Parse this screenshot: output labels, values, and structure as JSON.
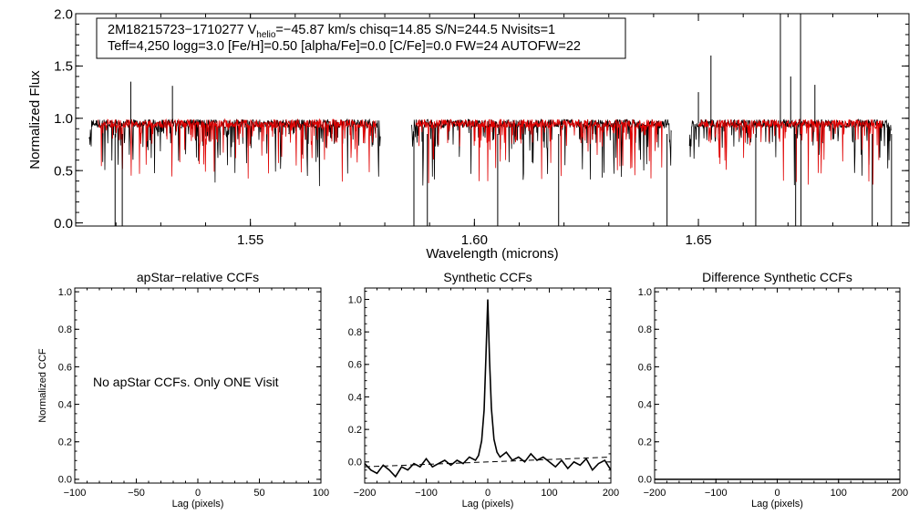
{
  "chart_data": [
    {
      "type": "line",
      "title": "",
      "xlabel": "Wavelength (microns)",
      "ylabel": "Normalized Flux",
      "xlim": [
        1.511,
        1.697
      ],
      "ylim": [
        -0.03,
        2.0
      ],
      "xticks": [
        1.55,
        1.6,
        1.65
      ],
      "xtick_labels": [
        "1.55",
        "1.60",
        "1.65"
      ],
      "yticks": [
        0.0,
        0.5,
        1.0,
        1.5,
        2.0
      ],
      "ytick_labels": [
        "0.0",
        "0.5",
        "1.0",
        "1.5",
        "2.0"
      ],
      "annotation": {
        "line1_id": "2M18215723−1710277",
        "line1_v": "V",
        "line1_v_sub": "helio",
        "line1_rest": "=−45.87 km/s  chisq=14.85  S/N=244.5  Nvisits=1",
        "line2": "Teff=4,250 logg=3.0 [Fe/H]=0.50 [alpha/Fe]=0.0 [C/Fe]=0.0 FW=24 AUTOFW=22"
      },
      "series": [
        {
          "color": "#000000",
          "segments": [
            [
              1.514,
              1.579
            ],
            [
              1.586,
              1.644
            ],
            [
              1.648,
              1.693
            ]
          ]
        },
        {
          "color": "#e00000",
          "segments": [
            [
              1.516,
              1.578
            ],
            [
              1.587,
              1.642
            ],
            [
              1.65,
              1.691
            ]
          ]
        }
      ],
      "continuum": 0.95,
      "spikes_up": [
        {
          "x": 1.5233,
          "y": 1.35
        },
        {
          "x": 1.5326,
          "y": 1.31
        },
        {
          "x": 1.65,
          "y": 1.25
        },
        {
          "x": 1.6528,
          "y": 1.6
        },
        {
          "x": 1.6683,
          "y": 2.0
        },
        {
          "x": 1.6706,
          "y": 1.4
        },
        {
          "x": 1.6728,
          "y": 2.0
        },
        {
          "x": 1.676,
          "y": 1.32
        }
      ],
      "dips": [
        {
          "x": 1.5198,
          "y": -0.03
        },
        {
          "x": 1.5214,
          "y": -0.03
        },
        {
          "x": 1.5586,
          "y": 0.86
        },
        {
          "x": 1.5865,
          "y": -0.03
        },
        {
          "x": 1.5895,
          "y": -0.03
        },
        {
          "x": 1.6052,
          "y": -0.03
        },
        {
          "x": 1.6188,
          "y": -0.03
        },
        {
          "x": 1.643,
          "y": -0.03
        },
        {
          "x": 1.6628,
          "y": -0.03
        },
        {
          "x": 1.6717,
          "y": -0.03
        },
        {
          "x": 1.6729,
          "y": -0.03
        },
        {
          "x": 1.6888,
          "y": -0.03
        },
        {
          "x": 1.6931,
          "y": -0.03
        }
      ]
    },
    {
      "type": "line",
      "title": "apStar−relative CCFs",
      "xlabel": "Lag (pixels)",
      "ylabel": "Normalized CCF",
      "xlim": [
        -100,
        100
      ],
      "ylim": [
        -0.02,
        1.02
      ],
      "xticks": [
        -100,
        -50,
        0,
        50,
        100
      ],
      "xtick_labels": [
        "−100",
        "−50",
        "0",
        "50",
        "100"
      ],
      "yticks": [
        0.0,
        0.2,
        0.4,
        0.6,
        0.8,
        1.0
      ],
      "ytick_labels": [
        "0.0",
        "0.2",
        "0.4",
        "0.6",
        "0.8",
        "1.0"
      ],
      "message": "No apStar CCFs.  Only ONE Visit",
      "series": []
    },
    {
      "type": "line",
      "title": "Synthetic CCFs",
      "xlabel": "Lag (pixels)",
      "ylabel": "",
      "xlim": [
        -200,
        200
      ],
      "ylim": [
        -0.13,
        1.07
      ],
      "xticks": [
        -200,
        -100,
        0,
        100,
        200
      ],
      "xtick_labels": [
        "−200",
        "−100",
        "0",
        "100",
        "200"
      ],
      "yticks": [
        0.0,
        0.2,
        0.4,
        0.6,
        0.8,
        1.0
      ],
      "ytick_labels": [
        "0.0",
        "0.2",
        "0.4",
        "0.6",
        "0.8",
        "1.0"
      ],
      "baseline_fit": {
        "x": [
          -200,
          200
        ],
        "y": [
          -0.03,
          0.03
        ],
        "style": "dashed"
      },
      "series": [
        {
          "color": "#000000",
          "x": [
            -200,
            -190,
            -180,
            -170,
            -160,
            -150,
            -140,
            -130,
            -120,
            -110,
            -100,
            -90,
            -80,
            -70,
            -60,
            -50,
            -40,
            -30,
            -20,
            -15,
            -10,
            -6,
            -3,
            0,
            3,
            6,
            10,
            15,
            20,
            30,
            40,
            50,
            60,
            70,
            80,
            90,
            100,
            110,
            120,
            130,
            140,
            150,
            160,
            170,
            180,
            190,
            200
          ],
          "y": [
            -0.01,
            -0.05,
            -0.07,
            -0.02,
            -0.05,
            -0.09,
            -0.03,
            -0.05,
            -0.01,
            -0.03,
            0.02,
            -0.03,
            -0.01,
            0.01,
            -0.02,
            0.01,
            -0.01,
            0.03,
            0.01,
            0.04,
            0.13,
            0.32,
            0.65,
            1.0,
            0.62,
            0.33,
            0.14,
            0.06,
            0.03,
            0.06,
            0.01,
            0.03,
            0.0,
            0.05,
            0.01,
            0.03,
            0.0,
            -0.03,
            0.01,
            -0.04,
            0.0,
            -0.02,
            0.02,
            -0.05,
            -0.01,
            0.01,
            -0.05
          ]
        }
      ]
    },
    {
      "type": "line",
      "title": "Difference Synthetic CCFs",
      "xlabel": "Lag (pixels)",
      "ylabel": "",
      "xlim": [
        -200,
        200
      ],
      "ylim": [
        -0.02,
        1.02
      ],
      "xticks": [
        -200,
        -100,
        0,
        100,
        200
      ],
      "xtick_labels": [
        "−200",
        "−100",
        "0",
        "100",
        "200"
      ],
      "yticks": [
        0.0,
        0.2,
        0.4,
        0.6,
        0.8,
        1.0
      ],
      "ytick_labels": [
        "0.0",
        "0.2",
        "0.4",
        "0.6",
        "0.8",
        "1.0"
      ],
      "series": [
        {
          "color": "#000000",
          "x": [
            -200,
            200
          ],
          "y": [
            0.0,
            0.0
          ]
        }
      ]
    }
  ]
}
